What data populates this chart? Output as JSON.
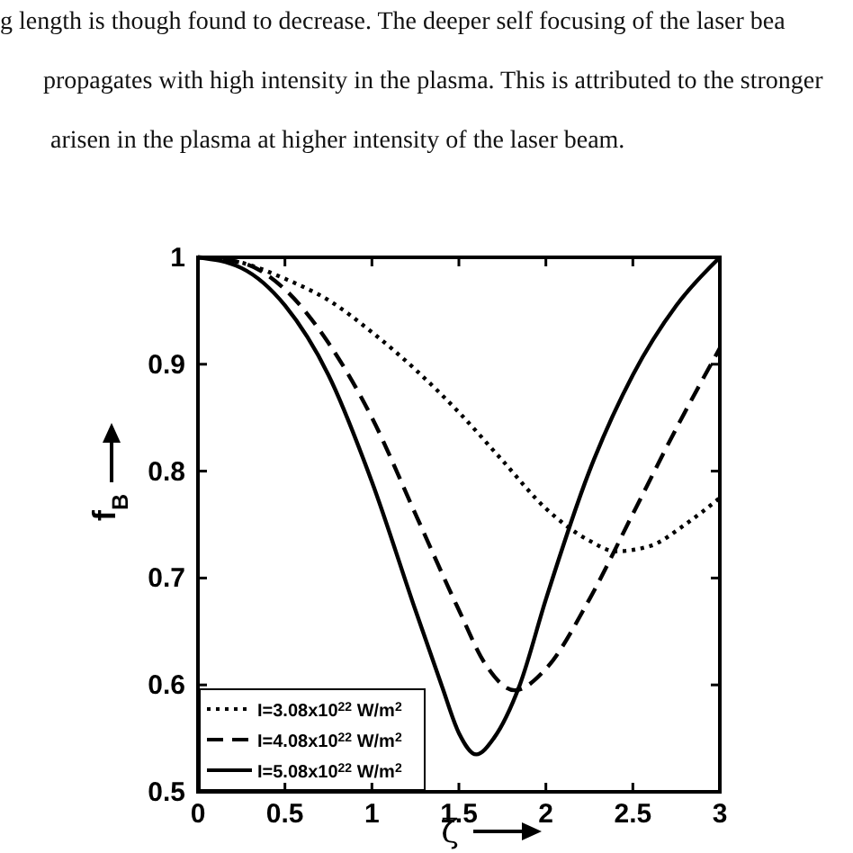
{
  "chart_data": {
    "type": "line",
    "xlabel": "ζ",
    "ylabel": "f$_{B}$",
    "annotations": [
      "g length is though found to decrease. The deeper self focusing of the laser bea",
      "propagates with high intensity in the plasma. This is attributed to the stronger",
      "arisen in the plasma at higher intensity of the laser beam."
    ],
    "xlim": [
      0,
      3
    ],
    "ylim": [
      0.5,
      1
    ],
    "xticks": [
      0,
      0.5,
      1,
      1.5,
      2,
      2.5,
      3
    ],
    "yticks": [
      0.5,
      0.6,
      0.7,
      0.8,
      0.9,
      1
    ],
    "grid": false,
    "legend": "bottom left",
    "marker": "none",
    "series": [
      {
        "name": "I=3.08x10$^{22}$ W/m$^{2}$",
        "color": "#000000",
        "line_style": "dotted",
        "x": [
          0,
          0.25,
          0.5,
          0.75,
          1,
          1.25,
          1.5,
          1.75,
          2,
          2.25,
          2.4,
          2.6,
          2.8,
          3
        ],
        "values": [
          1,
          0.995,
          0.98,
          0.96,
          0.93,
          0.895,
          0.855,
          0.81,
          0.765,
          0.735,
          0.725,
          0.73,
          0.75,
          0.775
        ]
      },
      {
        "name": "I=4.08x10$^{22}$ W/m$^{2}$",
        "color": "#000000",
        "line_style": "dashed",
        "x": [
          0,
          0.25,
          0.5,
          0.75,
          1,
          1.25,
          1.5,
          1.65,
          1.82,
          2,
          2.25,
          2.5,
          2.75,
          3
        ],
        "values": [
          1,
          0.995,
          0.97,
          0.92,
          0.85,
          0.76,
          0.67,
          0.62,
          0.595,
          0.615,
          0.68,
          0.76,
          0.84,
          0.915
        ]
      },
      {
        "name": "I=5.08x10$^{22}$ W/m$^{2}$",
        "color": "#000000",
        "line_style": "solid",
        "x": [
          0,
          0.25,
          0.5,
          0.75,
          1,
          1.25,
          1.4,
          1.5,
          1.6,
          1.7,
          1.85,
          2,
          2.25,
          2.5,
          2.75,
          3
        ],
        "values": [
          1,
          0.99,
          0.955,
          0.89,
          0.79,
          0.67,
          0.6,
          0.555,
          0.535,
          0.55,
          0.6,
          0.68,
          0.8,
          0.89,
          0.955,
          1
        ]
      }
    ]
  }
}
